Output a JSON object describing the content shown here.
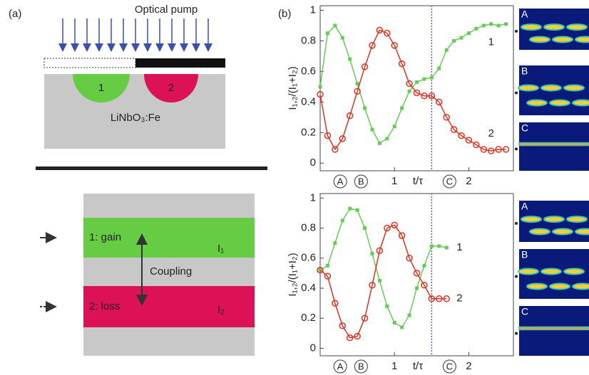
{
  "panel_a": {
    "label": "(a)",
    "pump": "Optical pump",
    "guide_1": "1",
    "guide_2": "2",
    "crystal": "LiNbO₃:Fe",
    "gain": "1: gain",
    "loss": "2: loss",
    "coupling": "Coupling",
    "intensity_1": "I₁",
    "intensity_2": "I₂"
  },
  "panel_b_label": "(b)",
  "chart_data": [
    {
      "type": "line",
      "ylabel": "I₁,₂/(I₁+I₂)",
      "xlabel": "t/τ",
      "x": [
        0,
        0.1,
        0.2,
        0.3,
        0.4,
        0.5,
        0.6,
        0.7,
        0.8,
        0.9,
        1.0,
        1.1,
        1.2,
        1.3,
        1.4,
        1.5,
        1.6,
        1.7,
        1.8,
        1.9,
        2.0,
        2.1,
        2.2,
        2.3,
        2.4,
        2.5
      ],
      "series": [
        {
          "name": "1",
          "color": "#66cc55",
          "values": [
            0.5,
            0.85,
            0.9,
            0.82,
            0.68,
            0.52,
            0.36,
            0.22,
            0.13,
            0.16,
            0.24,
            0.36,
            0.47,
            0.53,
            0.55,
            0.56,
            0.62,
            0.74,
            0.8,
            0.82,
            0.85,
            0.88,
            0.9,
            0.91,
            0.9,
            0.91
          ]
        },
        {
          "name": "2",
          "color": "#dd3322",
          "values": [
            0.45,
            0.18,
            0.09,
            0.16,
            0.31,
            0.47,
            0.63,
            0.77,
            0.87,
            0.85,
            0.77,
            0.65,
            0.52,
            0.46,
            0.44,
            0.44,
            0.4,
            0.3,
            0.22,
            0.18,
            0.15,
            0.12,
            0.09,
            0.08,
            0.09,
            0.09
          ]
        }
      ],
      "xlim": [
        0,
        2.6
      ],
      "xticks": [
        1,
        2
      ],
      "ylim": [
        -0.05,
        1.03
      ],
      "yticks": [
        0,
        0.2,
        0.4,
        0.6,
        0.8,
        1
      ],
      "marker_x": 1.5,
      "annotations": [
        {
          "text": "A",
          "x": 0.27
        },
        {
          "text": "B",
          "x": 0.55
        },
        {
          "text": "C",
          "x": 1.74
        }
      ],
      "insets": [
        "A",
        "B",
        "C"
      ]
    },
    {
      "type": "line",
      "ylabel": "I₁,₂/(I₁+I₂)",
      "xlabel": "t/τ",
      "x": [
        0,
        0.1,
        0.2,
        0.3,
        0.4,
        0.5,
        0.6,
        0.7,
        0.8,
        0.9,
        1.0,
        1.1,
        1.2,
        1.3,
        1.4,
        1.5,
        1.6,
        1.7
      ],
      "series": [
        {
          "name": "1",
          "color": "#66cc55",
          "values": [
            0.52,
            0.55,
            0.7,
            0.85,
            0.93,
            0.92,
            0.8,
            0.63,
            0.45,
            0.28,
            0.17,
            0.14,
            0.22,
            0.4,
            0.55,
            0.68,
            0.68,
            0.67
          ]
        },
        {
          "name": "2",
          "color": "#dd3322",
          "values": [
            0.52,
            0.48,
            0.3,
            0.15,
            0.07,
            0.08,
            0.2,
            0.42,
            0.65,
            0.8,
            0.82,
            0.75,
            0.6,
            0.5,
            0.42,
            0.33,
            0.33,
            0.33
          ]
        }
      ],
      "xlim": [
        0,
        2.6
      ],
      "xticks": [
        1,
        2
      ],
      "ylim": [
        -0.05,
        1.03
      ],
      "yticks": [
        0,
        0.2,
        0.4,
        0.6,
        0.8,
        1
      ],
      "marker_x": 1.5,
      "annotations": [
        {
          "text": "A",
          "x": 0.27
        },
        {
          "text": "B",
          "x": 0.55
        },
        {
          "text": "C",
          "x": 1.74
        }
      ],
      "insets": [
        "A",
        "B",
        "C"
      ]
    }
  ]
}
